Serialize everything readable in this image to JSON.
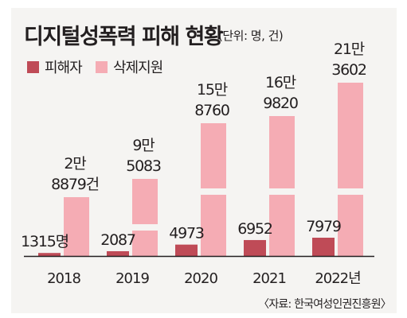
{
  "title": "디지털성폭력 피해 현황",
  "unit": "(단위: 명, 건)",
  "source": "〈자료: 한국여성인권진흥원〉",
  "colors": {
    "victims": "#bf4b57",
    "deleted": "#f5acb4",
    "axis": "#231f20",
    "frame": "#f5f4f2"
  },
  "chart_data": {
    "type": "bar",
    "categories": [
      "2018",
      "2019",
      "2020",
      "2021",
      "2022년"
    ],
    "series": [
      {
        "name": "피해자",
        "values": [
          1315,
          2087,
          4973,
          6952,
          7979
        ],
        "labels": [
          "1315명",
          "2087",
          "4973",
          "6952",
          "7979"
        ]
      },
      {
        "name": "삭제지원",
        "values": [
          28879,
          95083,
          158760,
          169820,
          213602
        ],
        "labels": [
          [
            "2만",
            "8879건"
          ],
          [
            "9만",
            "5083"
          ],
          [
            "15만",
            "8760"
          ],
          [
            "16만",
            "9820"
          ],
          [
            "21만",
            "3602"
          ]
        ]
      }
    ],
    "axis_break": true,
    "ylim": [
      0,
      213602
    ]
  }
}
